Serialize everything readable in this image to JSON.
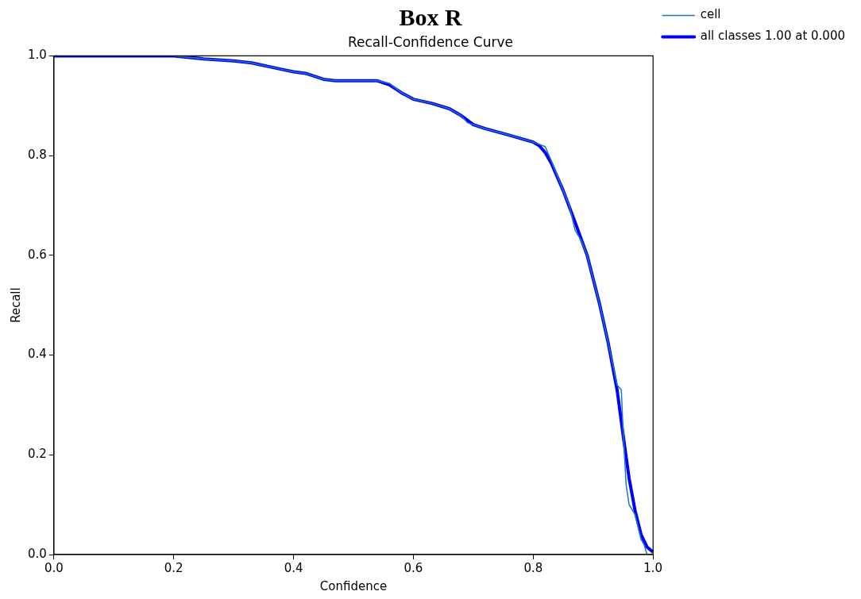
{
  "chart_data": {
    "type": "line",
    "title": "Box R",
    "subtitle": "Recall-Confidence Curve",
    "xlabel": "Confidence",
    "ylabel": "Recall",
    "xlim": [
      0,
      1
    ],
    "ylim": [
      0,
      1
    ],
    "xticks": [
      {
        "value": 0,
        "label": "0.0"
      },
      0.2,
      0.4,
      0.6,
      0.8,
      {
        "value": 1,
        "label": "1.0"
      }
    ],
    "yticks": [
      {
        "value": 0,
        "label": "0.0"
      },
      0.2,
      0.4,
      0.6,
      0.8,
      {
        "value": 1,
        "label": "1.0"
      }
    ],
    "grid": false,
    "legend": "top right",
    "marker": "none",
    "series": [
      {
        "name": "cell",
        "color": "#1f77b4",
        "x": [
          0.2,
          0.25,
          0.3,
          0.33,
          0.38,
          0.4,
          0.42,
          0.45,
          0.47,
          0.54,
          0.56,
          0.58,
          0.6,
          0.63,
          0.66,
          0.68,
          0.69,
          0.7,
          0.72,
          0.76,
          0.8,
          0.82,
          0.83,
          0.85,
          0.86,
          0.87,
          0.88,
          0.89,
          0.91,
          0.925,
          0.94,
          0.947,
          0.95,
          0.955,
          0.96,
          0.97,
          0.98,
          0.985,
          0.99
        ],
        "values": [
          1,
          0.994,
          0.99,
          0.986,
          0.973,
          0.968,
          0.965,
          0.953,
          0.95,
          0.95,
          0.945,
          0.926,
          0.913,
          0.905,
          0.894,
          0.88,
          0.866,
          0.862,
          0.854,
          0.841,
          0.827,
          0.818,
          0.79,
          0.73,
          0.7,
          0.65,
          0.63,
          0.6,
          0.506,
          0.425,
          0.34,
          0.33,
          0.25,
          0.14,
          0.1,
          0.08,
          0.03,
          0.02,
          0.0
        ]
      },
      {
        "name": "all classes 1.00 at 0.000",
        "color": "#0000ff",
        "x": [
          0,
          0.2,
          0.25,
          0.3,
          0.33,
          0.38,
          0.4,
          0.42,
          0.45,
          0.47,
          0.54,
          0.56,
          0.58,
          0.6,
          0.63,
          0.66,
          0.68,
          0.7,
          0.72,
          0.76,
          0.8,
          0.81,
          0.82,
          0.83,
          0.85,
          0.87,
          0.89,
          0.91,
          0.925,
          0.94,
          0.95,
          0.96,
          0.97,
          0.98,
          0.99,
          1.0
        ],
        "values": [
          1,
          1,
          0.994,
          0.99,
          0.986,
          0.973,
          0.968,
          0.965,
          0.953,
          0.95,
          0.95,
          0.942,
          0.926,
          0.913,
          0.905,
          0.894,
          0.88,
          0.862,
          0.854,
          0.841,
          0.827,
          0.82,
          0.806,
          0.785,
          0.73,
          0.666,
          0.6,
          0.506,
          0.425,
          0.33,
          0.24,
          0.153,
          0.088,
          0.04,
          0.015,
          0.005
        ]
      }
    ]
  }
}
